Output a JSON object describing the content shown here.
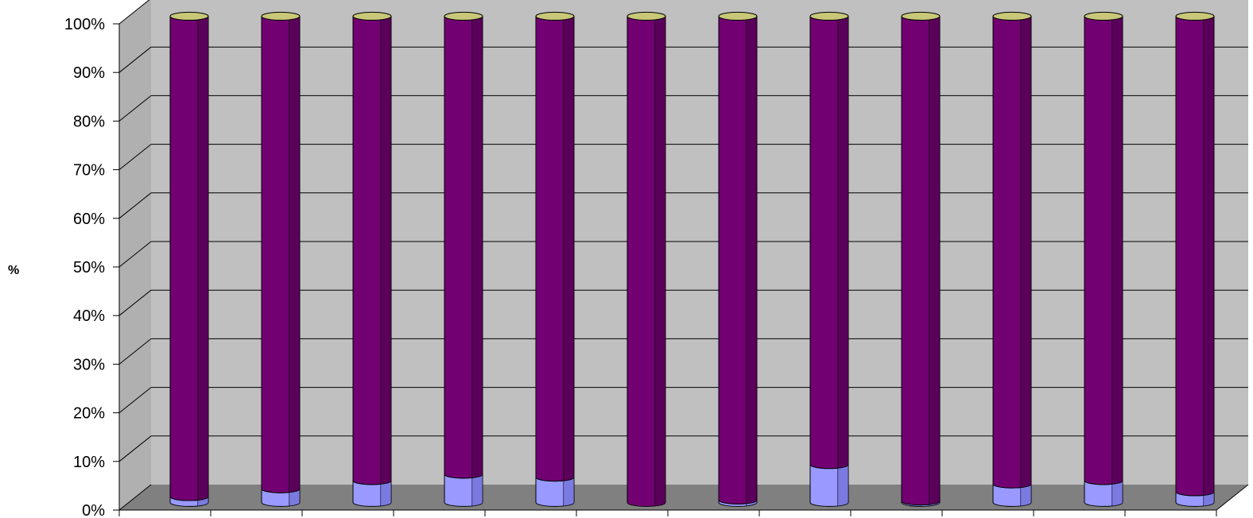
{
  "colors": {
    "wall": "#c0c0c0",
    "floor": "#808080",
    "series_bottom": "#9999ff",
    "series_bottom_dark": "#7a7ae0",
    "series_top": "#720072",
    "series_top_dark": "#5a005a",
    "cap": "#c8c878",
    "gridline": "#000000"
  },
  "chart_data": {
    "type": "bar",
    "stacked": "percent",
    "three_d": true,
    "ylabel": "%",
    "ylim": [
      0,
      100
    ],
    "yticks": [
      "0%",
      "10%",
      "20%",
      "30%",
      "40%",
      "50%",
      "60%",
      "70%",
      "80%",
      "90%",
      "100%"
    ],
    "grid": true,
    "legend": "none",
    "categories": [
      "",
      "",
      "",
      "",
      "",
      "",
      "",
      "",
      "",
      "",
      "",
      ""
    ],
    "series": [
      {
        "values": [
          1.2,
          2.8,
          4.5,
          5.8,
          5.2,
          0.0,
          0.5,
          7.8,
          0.3,
          3.8,
          4.5,
          2.2
        ]
      },
      {
        "values": [
          98.8,
          97.2,
          95.5,
          94.2,
          94.8,
          100.0,
          99.5,
          92.2,
          99.7,
          96.2,
          95.5,
          97.8
        ]
      }
    ]
  }
}
